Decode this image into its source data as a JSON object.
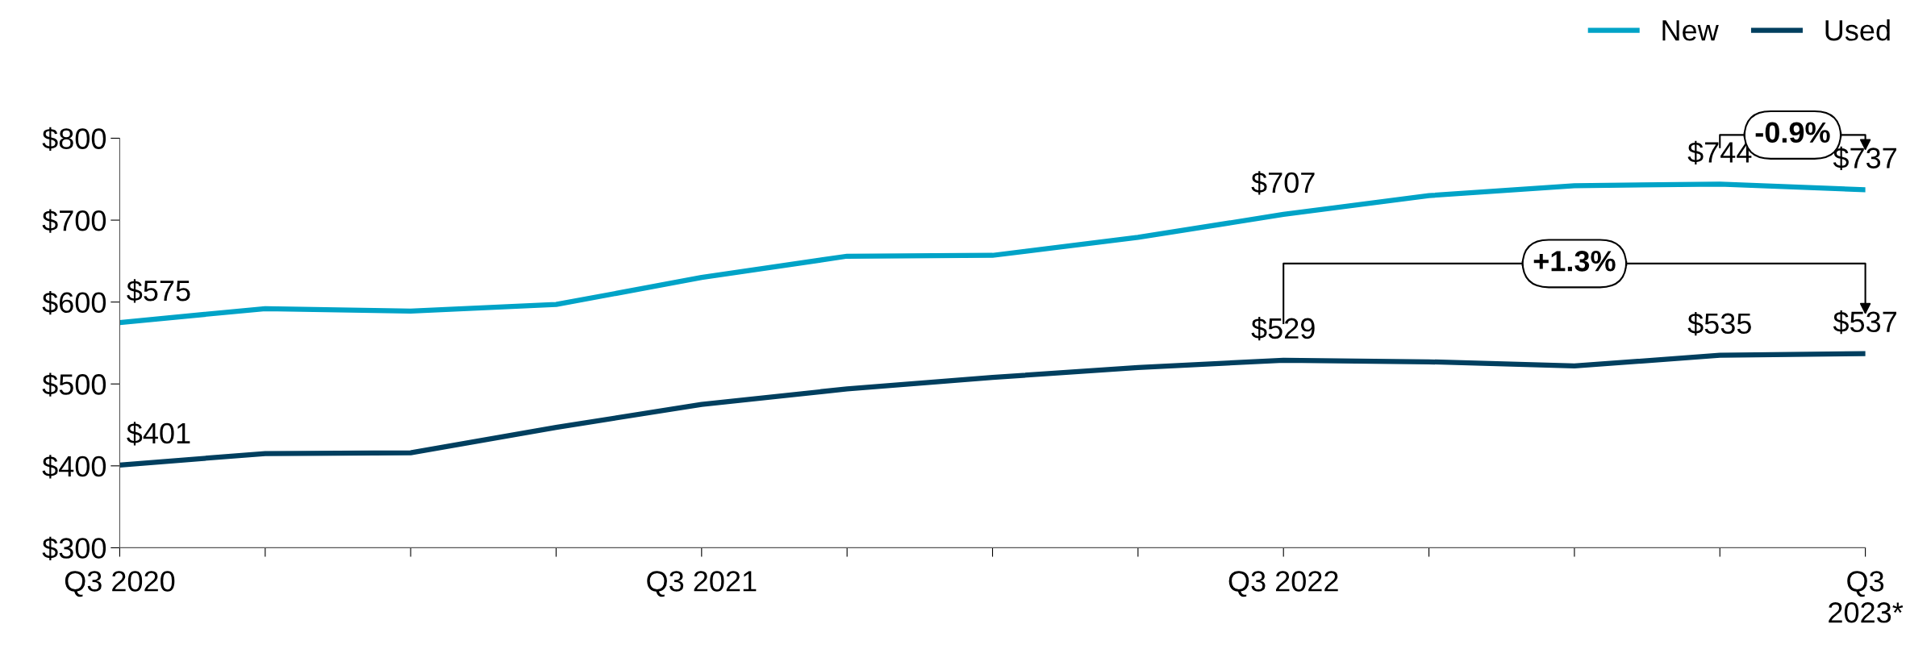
{
  "chart_data": {
    "type": "line",
    "categories": [
      "Q3 2020",
      null,
      null,
      null,
      "Q3 2021",
      null,
      null,
      null,
      "Q3 2022",
      null,
      null,
      null,
      "Q3\n2023*"
    ],
    "series": [
      {
        "name": "New",
        "color": "#00a3c7",
        "values": [
          575,
          592,
          589,
          597,
          630,
          656,
          657,
          679,
          707,
          730,
          742,
          744,
          737
        ],
        "value_labels": [
          "$575",
          null,
          null,
          null,
          null,
          null,
          null,
          null,
          "$707",
          null,
          null,
          "$744",
          "$737"
        ]
      },
      {
        "name": "Used",
        "color": "#003f5f",
        "values": [
          401,
          415,
          416,
          447,
          475,
          494,
          508,
          520,
          529,
          527,
          522,
          535,
          537
        ],
        "value_labels": [
          "$401",
          null,
          null,
          null,
          null,
          null,
          null,
          null,
          "$529",
          null,
          null,
          "$535",
          "$537"
        ]
      }
    ],
    "ylim": [
      300,
      800
    ],
    "yticks": [
      {
        "value": 300,
        "label": "$300"
      },
      {
        "value": 400,
        "label": "$400"
      },
      {
        "value": 500,
        "label": "$500"
      },
      {
        "value": 600,
        "label": "$600"
      },
      {
        "value": 700,
        "label": "$700"
      },
      {
        "value": 800,
        "label": "$800"
      }
    ],
    "annotations": [
      "-0.9%",
      "+1.3%"
    ],
    "legend": "top right",
    "grid": false,
    "marker": "none",
    "line_style": "solid"
  }
}
